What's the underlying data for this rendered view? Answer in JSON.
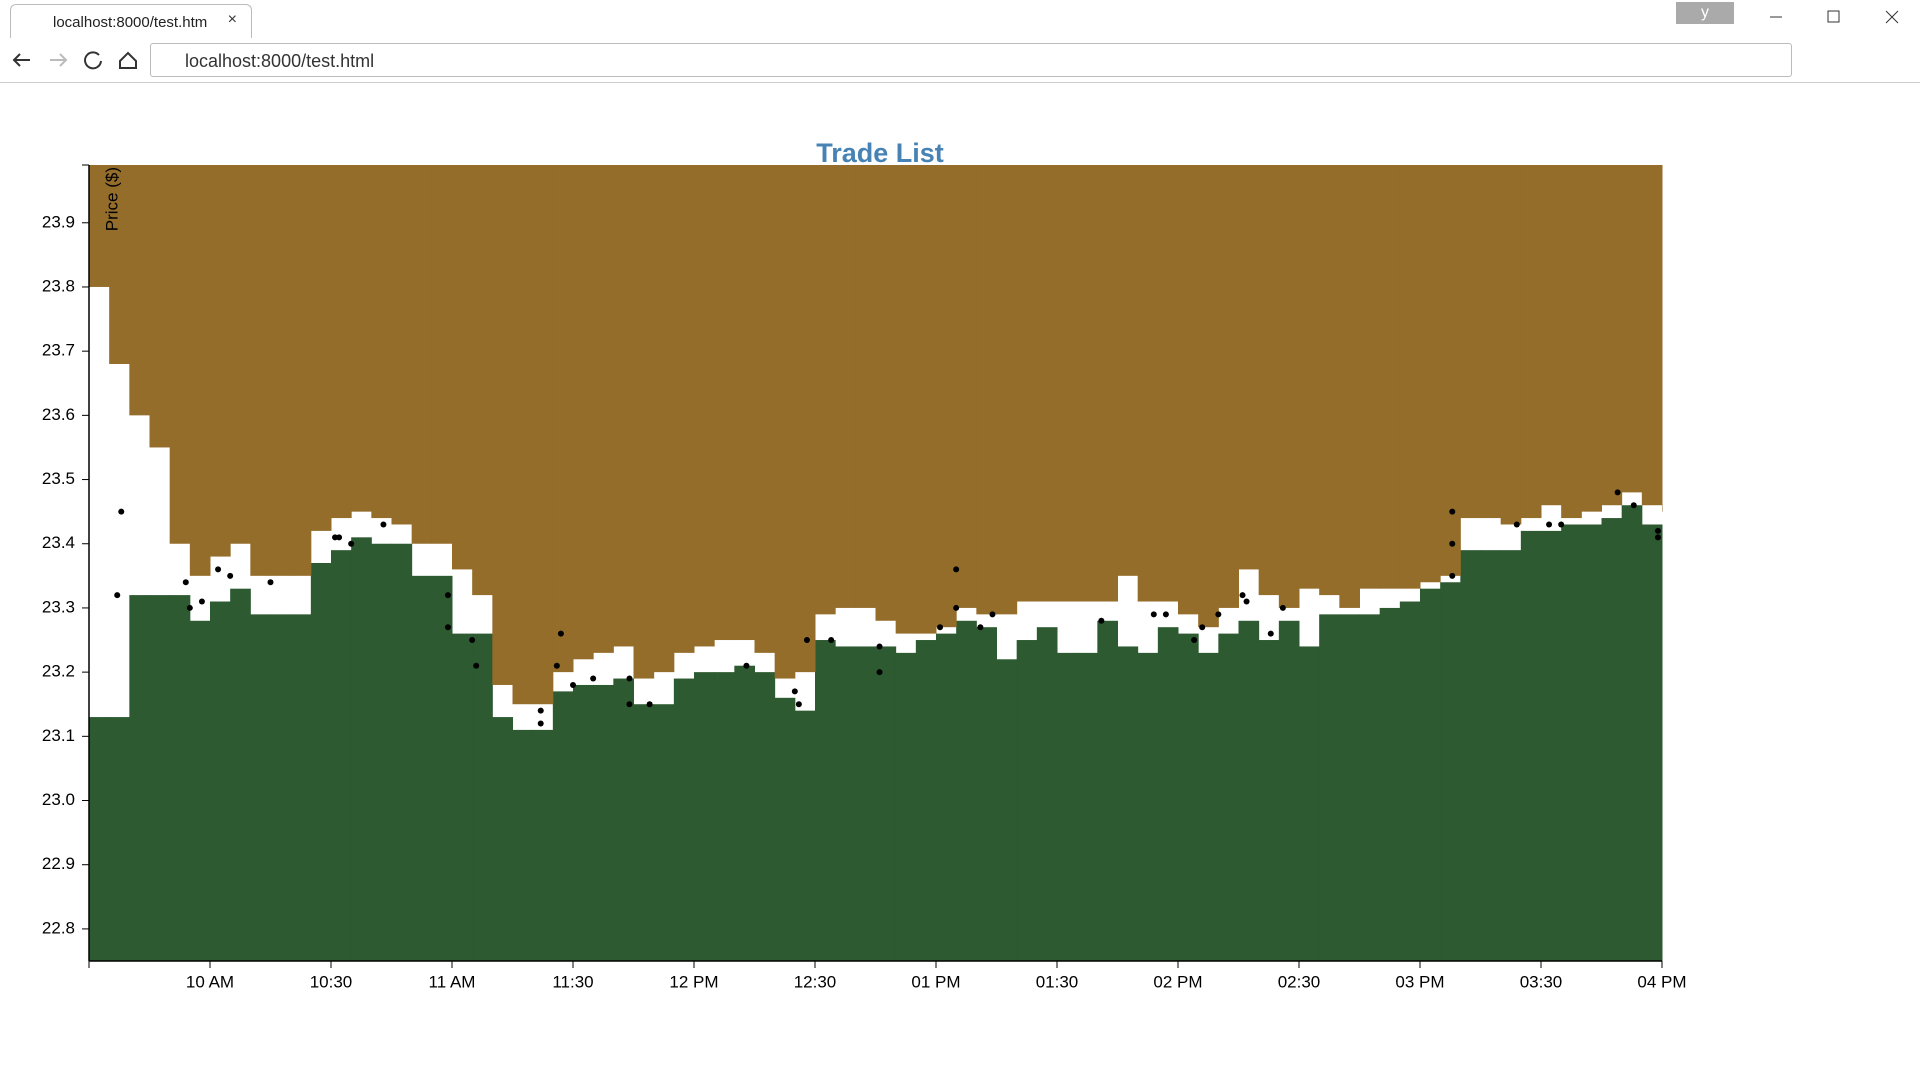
{
  "browser": {
    "tab_title": "localhost:8000/test.htm",
    "url": "localhost:8000/test.html",
    "profile": "y"
  },
  "chart_data": {
    "type": "area",
    "title": "Trade List",
    "y_label": "Price ($)",
    "xlim": [
      "09:30",
      "16:00"
    ],
    "xticks": [
      {
        "value": "10:00",
        "label": "10 AM"
      },
      {
        "value": "10:30",
        "label": "10:30"
      },
      {
        "value": "11:00",
        "label": "11 AM"
      },
      {
        "value": "11:30",
        "label": "11:30"
      },
      {
        "value": "12:00",
        "label": "12 PM"
      },
      {
        "value": "12:30",
        "label": "12:30"
      },
      {
        "value": "13:00",
        "label": "01 PM"
      },
      {
        "value": "13:30",
        "label": "01:30"
      },
      {
        "value": "14:00",
        "label": "02 PM"
      },
      {
        "value": "14:30",
        "label": "02:30"
      },
      {
        "value": "15:00",
        "label": "03 PM"
      },
      {
        "value": "15:30",
        "label": "03:30"
      },
      {
        "value": "16:00",
        "label": "04 PM"
      }
    ],
    "ylim": [
      22.75,
      23.99
    ],
    "yticks": [
      22.8,
      22.9,
      {
        "value": 23,
        "label": "23.0"
      },
      23.1,
      23.2,
      23.3,
      23.4,
      23.5,
      23.6,
      23.7,
      23.8,
      23.9
    ],
    "curve": "step",
    "x": [
      "09:30",
      "09:35",
      "09:40",
      "09:45",
      "09:50",
      "09:55",
      "10:00",
      "10:05",
      "10:10",
      "10:15",
      "10:20",
      "10:25",
      "10:30",
      "10:35",
      "10:40",
      "10:45",
      "10:50",
      "10:55",
      "11:00",
      "11:05",
      "11:10",
      "11:15",
      "11:20",
      "11:25",
      "11:30",
      "11:35",
      "11:40",
      "11:45",
      "11:50",
      "11:55",
      "12:00",
      "12:05",
      "12:10",
      "12:15",
      "12:20",
      "12:25",
      "12:30",
      "12:35",
      "12:40",
      "12:45",
      "12:50",
      "12:55",
      "13:00",
      "13:05",
      "13:10",
      "13:15",
      "13:20",
      "13:25",
      "13:30",
      "13:35",
      "13:40",
      "13:45",
      "13:50",
      "13:55",
      "14:00",
      "14:05",
      "14:10",
      "14:15",
      "14:20",
      "14:25",
      "14:30",
      "14:35",
      "14:40",
      "14:45",
      "14:50",
      "14:55",
      "15:00",
      "15:05",
      "15:10",
      "15:15",
      "15:20",
      "15:25",
      "15:30",
      "15:35",
      "15:40",
      "15:45",
      "15:50",
      "15:55",
      "16:00"
    ],
    "series": [
      {
        "color": "#2d5a30",
        "fill": "below",
        "values": [
          23.13,
          23.13,
          23.32,
          23.32,
          23.32,
          23.28,
          23.31,
          23.33,
          23.29,
          23.29,
          23.29,
          23.37,
          23.39,
          23.41,
          23.4,
          23.4,
          23.35,
          23.35,
          23.26,
          23.26,
          23.13,
          23.11,
          23.11,
          23.17,
          23.18,
          23.18,
          23.19,
          23.15,
          23.15,
          23.19,
          23.2,
          23.2,
          23.21,
          23.2,
          23.16,
          23.14,
          23.25,
          23.24,
          23.24,
          23.24,
          23.23,
          23.25,
          23.26,
          23.28,
          23.27,
          23.22,
          23.25,
          23.27,
          23.23,
          23.23,
          23.28,
          23.24,
          23.23,
          23.27,
          23.26,
          23.23,
          23.26,
          23.28,
          23.25,
          23.28,
          23.24,
          23.29,
          23.29,
          23.29,
          23.3,
          23.31,
          23.33,
          23.34,
          23.39,
          23.39,
          23.39,
          23.42,
          23.42,
          23.43,
          23.43,
          23.44,
          23.46,
          23.43,
          23.41
        ]
      },
      {
        "color": "#946d2b",
        "fill": "above",
        "values": [
          23.8,
          23.68,
          23.6,
          23.55,
          23.4,
          23.35,
          23.38,
          23.4,
          23.35,
          23.35,
          23.35,
          23.42,
          23.44,
          23.45,
          23.44,
          23.43,
          23.4,
          23.4,
          23.36,
          23.32,
          23.18,
          23.15,
          23.15,
          23.2,
          23.22,
          23.23,
          23.24,
          23.19,
          23.2,
          23.23,
          23.24,
          23.25,
          23.25,
          23.23,
          23.19,
          23.2,
          23.29,
          23.3,
          23.3,
          23.28,
          23.26,
          23.26,
          23.27,
          23.3,
          23.29,
          23.29,
          23.31,
          23.31,
          23.31,
          23.31,
          23.31,
          23.35,
          23.31,
          23.31,
          23.29,
          23.27,
          23.3,
          23.36,
          23.32,
          23.3,
          23.33,
          23.32,
          23.3,
          23.33,
          23.33,
          23.33,
          23.34,
          23.35,
          23.44,
          23.44,
          23.43,
          23.44,
          23.46,
          23.44,
          23.45,
          23.46,
          23.48,
          23.46,
          23.45
        ]
      }
    ],
    "trades": {
      "color": "#000000",
      "x": [
        "09:37",
        "09:38",
        "09:54",
        "09:55",
        "09:58",
        "10:02",
        "10:05",
        "10:15",
        "10:31",
        "10:32",
        "10:35",
        "10:43",
        "10:59",
        "10:59",
        "11:05",
        "11:06",
        "11:22",
        "11:22",
        "11:26",
        "11:27",
        "11:30",
        "11:35",
        "11:44",
        "11:44",
        "11:49",
        "12:13",
        "12:25",
        "12:26",
        "12:28",
        "12:34",
        "12:46",
        "12:46",
        "13:01",
        "13:05",
        "13:05",
        "13:11",
        "13:14",
        "13:41",
        "13:54",
        "13:57",
        "14:04",
        "14:06",
        "14:10",
        "14:16",
        "14:17",
        "14:23",
        "14:26",
        "15:08",
        "15:08",
        "15:08",
        "15:24",
        "15:32",
        "15:35",
        "15:49",
        "15:53",
        "15:59",
        "15:59"
      ],
      "values": [
        23.32,
        23.45,
        23.34,
        23.3,
        23.31,
        23.36,
        23.35,
        23.34,
        23.41,
        23.41,
        23.4,
        23.43,
        23.32,
        23.27,
        23.25,
        23.21,
        23.12,
        23.14,
        23.21,
        23.26,
        23.18,
        23.19,
        23.19,
        23.15,
        23.15,
        23.21,
        23.17,
        23.15,
        23.25,
        23.25,
        23.24,
        23.2,
        23.27,
        23.36,
        23.3,
        23.27,
        23.29,
        23.28,
        23.29,
        23.29,
        23.25,
        23.27,
        23.29,
        23.32,
        23.31,
        23.26,
        23.3,
        23.45,
        23.4,
        23.35,
        23.43,
        23.43,
        23.43,
        23.48,
        23.46,
        23.42,
        23.41
      ]
    }
  }
}
